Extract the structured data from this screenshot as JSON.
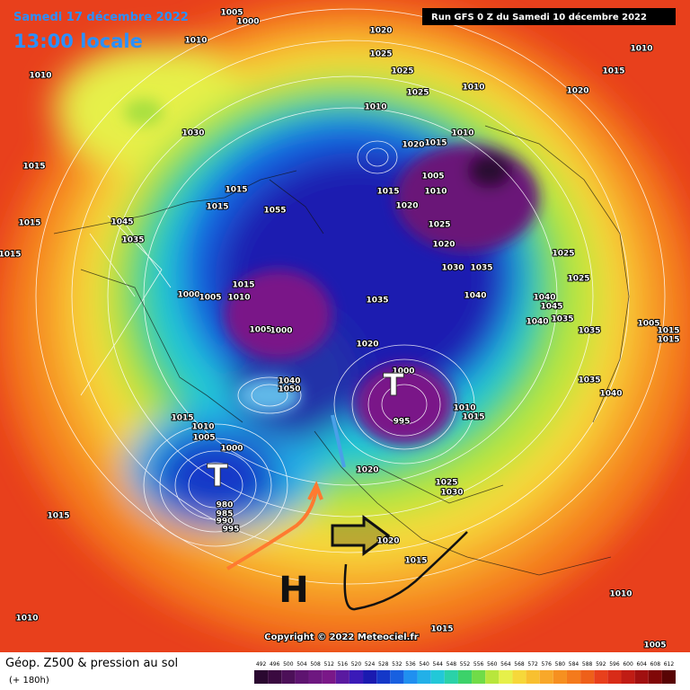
{
  "header": {
    "date": "Samedi 17 décembre 2022",
    "time": "13:00 locale",
    "run": "Run GFS 0 Z du Samedi 10 décembre 2022"
  },
  "map": {
    "pressure_labels": [
      "1005",
      "1000",
      "1010",
      "1010",
      "1020",
      "1025",
      "1025",
      "1025",
      "1010",
      "1015",
      "1010",
      "1020",
      "1030",
      "1010",
      "1020",
      "1015",
      "1010",
      "1005",
      "1010",
      "1015",
      "1020",
      "1025",
      "1020",
      "1030",
      "1035",
      "1040",
      "1025",
      "1025",
      "1040",
      "1045",
      "1040",
      "1035",
      "1035",
      "1005",
      "1015",
      "1015",
      "1035",
      "1040",
      "1015",
      "1015",
      "1015",
      "1015",
      "1055",
      "1015",
      "1045",
      "1035",
      "1000",
      "1005",
      "1010",
      "1015",
      "1005",
      "1000",
      "1035",
      "1020",
      "1000",
      "995",
      "1015",
      "1010",
      "1040",
      "1050",
      "1015",
      "1010",
      "1005",
      "1000",
      "980",
      "985",
      "990",
      "995",
      "1015",
      "1020",
      "1025",
      "1030",
      "1020",
      "1015",
      "1010",
      "1005",
      "1015",
      "1010"
    ],
    "low_markers": [
      "T",
      "T"
    ],
    "high_marker": "H",
    "copyright": "Copyright © 2022 Meteociel.fr"
  },
  "footer": {
    "title": "Géop. Z500 & pression au sol",
    "lead": "(+ 180h)",
    "scale": [
      492,
      496,
      500,
      504,
      508,
      512,
      516,
      520,
      524,
      528,
      532,
      536,
      540,
      544,
      548,
      552,
      556,
      560,
      564,
      568,
      572,
      576,
      580,
      584,
      588,
      592,
      596,
      600,
      604,
      608,
      612
    ]
  }
}
